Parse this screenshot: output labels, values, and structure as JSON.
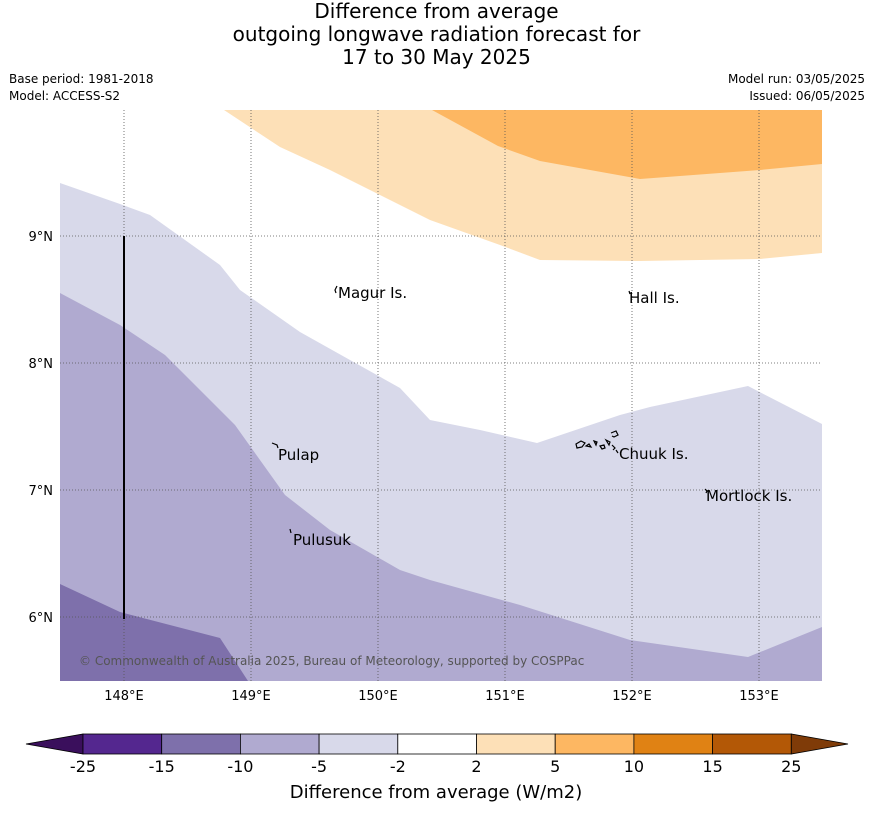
{
  "title": {
    "line1": "Difference from average",
    "line2": "outgoing longwave radiation forecast for",
    "line3": "17 to 30 May 2025"
  },
  "meta": {
    "base_period": "Base period: 1981-2018",
    "model": "Model: ACCESS-S2",
    "model_run": "Model run: 03/05/2025",
    "issued": "Issued: 06/05/2025"
  },
  "map": {
    "lon_labels": [
      "148°E",
      "149°E",
      "150°E",
      "151°E",
      "152°E",
      "153°E"
    ],
    "lat_labels": [
      "9°N",
      "8°N",
      "7°N",
      "6°N"
    ],
    "places": {
      "magur": "Magur Is.",
      "hall": "Hall Is.",
      "pulap": "Pulap",
      "chuuk": "Chuuk Is.",
      "mortlock": "Mortlock Is.",
      "pulusuk": "Pulusuk"
    },
    "copyright": "© Commonwealth of Australia 2025, Bureau of Meteorology, supported by COSPPac"
  },
  "colorbar": {
    "title": "Difference from average (W/m2)",
    "ticks": [
      "-25",
      "-15",
      "-10",
      "-5",
      "-2",
      "2",
      "5",
      "10",
      "15",
      "25"
    ],
    "colors": {
      "below_-25": "#3a0f5c",
      "-25_-15": "#54278f",
      "-15_-10": "#7e70ab",
      "-10_-5": "#b0aad0",
      "-5_-2": "#d8d9ea",
      "-2_2": "#ffffff",
      "2_5": "#fde0b7",
      "5_10": "#fdb762",
      "10_15": "#e08214",
      "15_25": "#b35806",
      "above_25": "#7f3b08"
    }
  }
}
